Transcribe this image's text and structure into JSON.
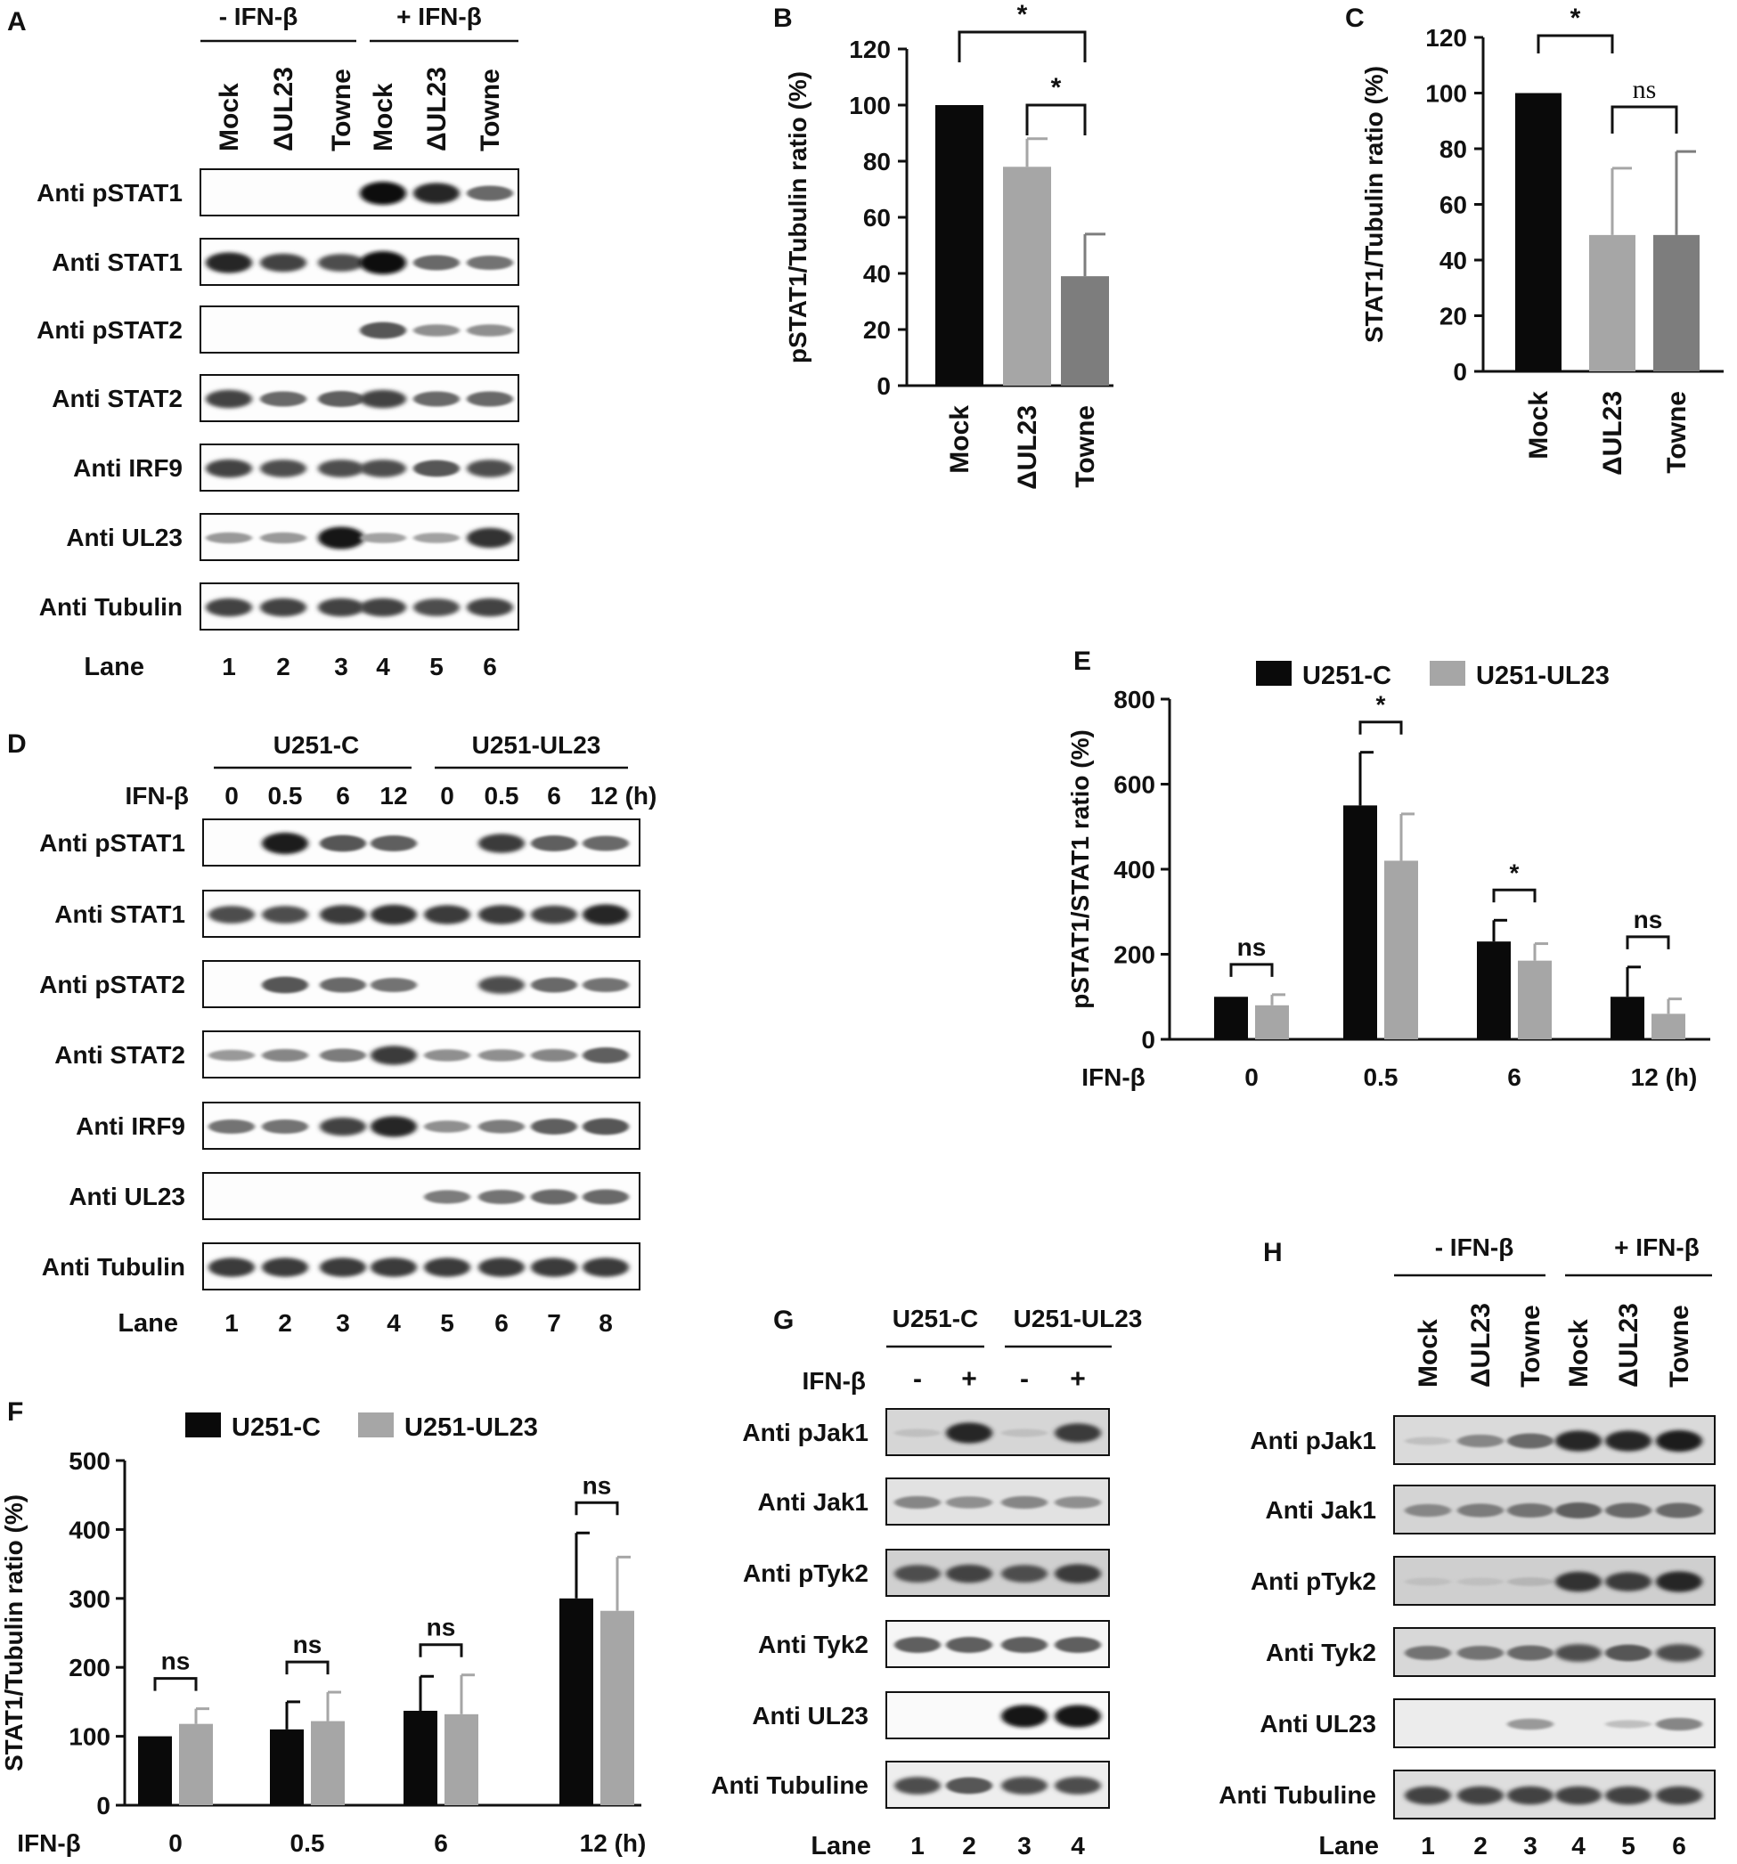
{
  "panels": {
    "A": {
      "letter": "A",
      "groups": [
        "- IFN-β",
        "+ IFN-β"
      ],
      "lanes": [
        "Mock",
        "ΔUL23",
        "Towne",
        "Mock",
        "ΔUL23",
        "Towne"
      ],
      "blots": [
        "Anti pSTAT1",
        "Anti STAT1",
        "Anti pSTAT2",
        "Anti STAT2",
        "Anti IRF9",
        "Anti UL23",
        "Anti Tubulin"
      ],
      "lane_label": "Lane",
      "lane_numbers": [
        "1",
        "2",
        "3",
        "4",
        "5",
        "6"
      ]
    },
    "D": {
      "letter": "D",
      "groups": [
        "U251-C",
        "U251-UL23"
      ],
      "treatment_label": "IFN-β",
      "timepoints": [
        "0",
        "0.5",
        "6",
        "12",
        "0",
        "0.5",
        "6",
        "12 (h)"
      ],
      "blots": [
        "Anti pSTAT1",
        "Anti STAT1",
        "Anti pSTAT2",
        "Anti STAT2",
        "Anti IRF9",
        "Anti UL23",
        "Anti Tubulin"
      ],
      "lane_label": "Lane",
      "lane_numbers": [
        "1",
        "2",
        "3",
        "4",
        "5",
        "6",
        "7",
        "8"
      ]
    },
    "G": {
      "letter": "G",
      "groups": [
        "U251-C",
        "U251-UL23"
      ],
      "treatment_label": "IFN-β",
      "treatment": [
        "-",
        "+",
        "-",
        "+"
      ],
      "blots": [
        "Anti pJak1",
        "Anti Jak1",
        "Anti pTyk2",
        "Anti Tyk2",
        "Anti UL23",
        "Anti Tubuline"
      ],
      "lane_label": "Lane",
      "lane_numbers": [
        "1",
        "2",
        "3",
        "4"
      ]
    },
    "H": {
      "letter": "H",
      "groups": [
        "- IFN-β",
        "+ IFN-β"
      ],
      "lanes": [
        "Mock",
        "ΔUL23",
        "Towne",
        "Mock",
        "ΔUL23",
        "Towne"
      ],
      "blots": [
        "Anti pJak1",
        "Anti Jak1",
        "Anti pTyk2",
        "Anti Tyk2",
        "Anti UL23",
        "Anti Tubuline"
      ],
      "lane_label": "Lane",
      "lane_numbers": [
        "1",
        "2",
        "3",
        "4",
        "5",
        "6"
      ]
    }
  },
  "colors": {
    "black_bar": "#0a0a0a",
    "light_gray_bar": "#a6a6a6",
    "dark_gray_bar": "#7d7d7d"
  },
  "chart_data": [
    {
      "panel": "B",
      "type": "bar",
      "categories": [
        "Mock",
        "ΔUL23",
        "Towne"
      ],
      "values": [
        100,
        78,
        39
      ],
      "errors": [
        0,
        10,
        15
      ],
      "ylabel": "pSTAT1/Tubulin ratio (%)",
      "ylim": [
        0,
        120
      ],
      "yticks": [
        "0",
        "20",
        "40",
        "60",
        "80",
        "100",
        "120"
      ],
      "significance": [
        {
          "from": "Mock",
          "to": "Towne",
          "label": "*"
        },
        {
          "from": "ΔUL23",
          "to": "Towne",
          "label": "*"
        }
      ]
    },
    {
      "panel": "C",
      "type": "bar",
      "categories": [
        "Mock",
        "ΔUL23",
        "Towne"
      ],
      "values": [
        100,
        49,
        49
      ],
      "errors": [
        0,
        24,
        30
      ],
      "ylabel": "STAT1/Tubulin ratio (%)",
      "ylim": [
        0,
        120
      ],
      "yticks": [
        "0",
        "20",
        "40",
        "60",
        "80",
        "100",
        "120"
      ],
      "significance": [
        {
          "from": "Mock",
          "to": "ΔUL23",
          "label": "*"
        },
        {
          "from": "ΔUL23",
          "to": "Towne",
          "label": "ns"
        }
      ]
    },
    {
      "panel": "E",
      "type": "bar",
      "categories": [
        "0",
        "0.5",
        "6",
        "12 (h)"
      ],
      "xlabel": "IFN-β",
      "series": [
        {
          "name": "U251-C",
          "values": [
            100,
            550,
            230,
            100
          ],
          "errors": [
            0,
            125,
            50,
            70
          ]
        },
        {
          "name": "U251-UL23",
          "values": [
            80,
            420,
            185,
            60
          ],
          "errors": [
            25,
            110,
            40,
            35
          ]
        }
      ],
      "ylabel": "pSTAT1/STAT1 ratio (%)",
      "ylim": [
        0,
        800
      ],
      "yticks": [
        "0",
        "200",
        "400",
        "600",
        "800"
      ],
      "significance": [
        "ns",
        "*",
        "*",
        "ns"
      ],
      "legend": "top"
    },
    {
      "panel": "F",
      "type": "bar",
      "categories": [
        "0",
        "0.5",
        "6",
        "12 (h)"
      ],
      "xlabel": "IFN-β",
      "series": [
        {
          "name": "U251-C",
          "values": [
            100,
            110,
            137,
            300
          ],
          "errors": [
            0,
            40,
            50,
            95
          ]
        },
        {
          "name": "U251-UL23",
          "values": [
            118,
            122,
            132,
            282
          ],
          "errors": [
            22,
            42,
            57,
            78
          ]
        }
      ],
      "ylabel": "STAT1/Tubulin ratio (%)",
      "ylim": [
        0,
        500
      ],
      "yticks": [
        "0",
        "100",
        "200",
        "300",
        "400",
        "500"
      ],
      "significance": [
        "ns",
        "ns",
        "ns",
        "ns"
      ],
      "legend": "top"
    }
  ]
}
